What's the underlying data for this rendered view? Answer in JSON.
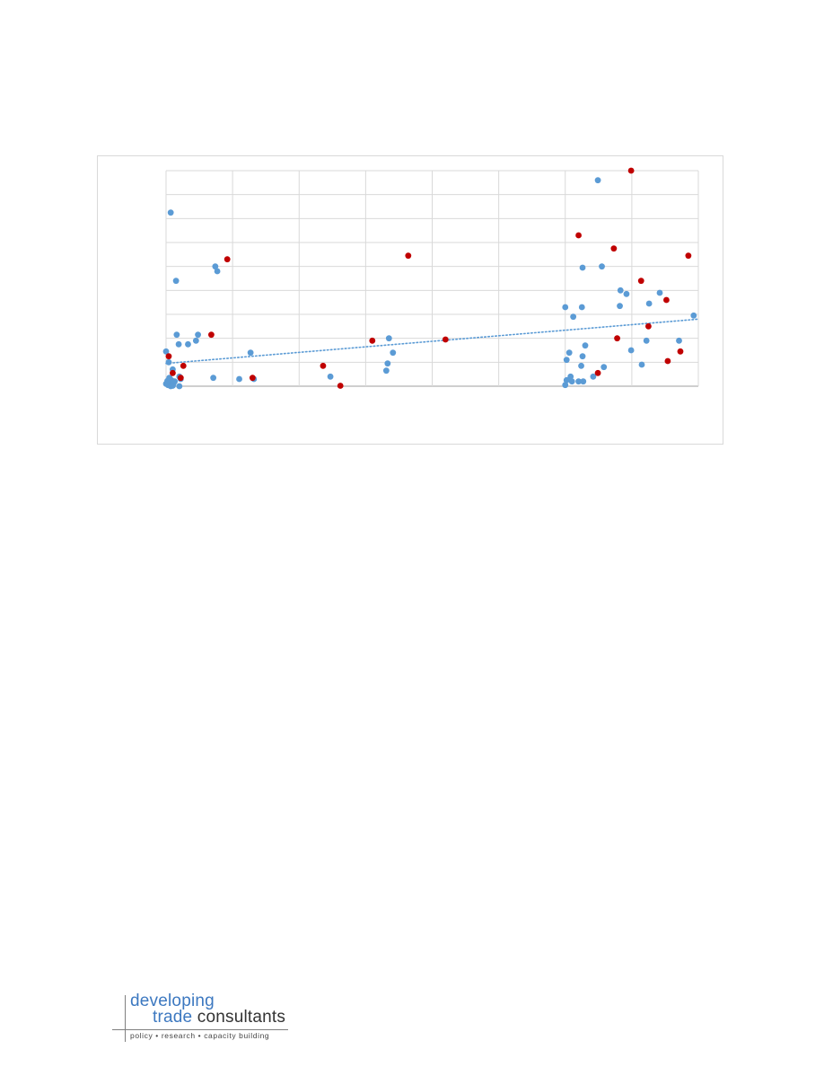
{
  "colors": {
    "series_a": "#5b9bd5",
    "series_b": "#c00000",
    "trendline": "#5b9bd5",
    "gridline": "#d9d9d9",
    "logo_blue": "#3c78c0",
    "logo_dark": "#333333"
  },
  "logo": {
    "line1": "developing",
    "line2_part1": "trade",
    "line2_part2": "consultants",
    "tagline": "policy  •  research  •  capacity building"
  },
  "chart_data": {
    "type": "scatter",
    "title": "",
    "xlabel": "",
    "ylabel": "",
    "grid": true,
    "legend": "none",
    "tick_labels_visible": false,
    "xlim": [
      0,
      8
    ],
    "ylim": [
      0,
      9
    ],
    "x_gridlines": [
      0,
      1,
      2,
      3,
      4,
      5,
      6,
      7,
      8
    ],
    "y_gridlines": [
      0,
      1,
      2,
      3,
      4,
      5,
      6,
      7,
      8,
      9
    ],
    "series": [
      {
        "color": "#5b9bd5",
        "points": [
          [
            0.07,
            7.25
          ],
          [
            0.15,
            4.4
          ],
          [
            0.74,
            5.0
          ],
          [
            0.77,
            4.8
          ],
          [
            0.16,
            2.15
          ],
          [
            0.19,
            1.75
          ],
          [
            0.33,
            1.75
          ],
          [
            0.45,
            1.9
          ],
          [
            0.48,
            2.15
          ],
          [
            0.0,
            1.45
          ],
          [
            0.04,
            1.0
          ],
          [
            0.1,
            0.7
          ],
          [
            0.2,
            0.4
          ],
          [
            0.22,
            0.3
          ],
          [
            0.05,
            0.35
          ],
          [
            0.0,
            0.1
          ],
          [
            0.03,
            0.05
          ],
          [
            0.06,
            0.15
          ],
          [
            0.08,
            0.25
          ],
          [
            0.11,
            0.1
          ],
          [
            0.13,
            0.2
          ],
          [
            0.07,
            0.0
          ],
          [
            0.02,
            0.22
          ],
          [
            0.1,
            0.02
          ],
          [
            0.2,
            0.0
          ],
          [
            0.71,
            0.35
          ],
          [
            1.1,
            0.3
          ],
          [
            1.27,
            1.4
          ],
          [
            1.32,
            0.3
          ],
          [
            2.47,
            0.4
          ],
          [
            3.35,
            2.0
          ],
          [
            3.33,
            0.95
          ],
          [
            3.31,
            0.65
          ],
          [
            3.41,
            1.4
          ],
          [
            6.49,
            8.6
          ],
          [
            6.55,
            5.0
          ],
          [
            6.0,
            3.3
          ],
          [
            6.02,
            1.1
          ],
          [
            6.06,
            1.4
          ],
          [
            6.08,
            0.4
          ],
          [
            6.02,
            0.25
          ],
          [
            6.0,
            0.05
          ],
          [
            6.1,
            0.2
          ],
          [
            6.2,
            0.2
          ],
          [
            6.27,
            0.2
          ],
          [
            6.12,
            2.9
          ],
          [
            6.25,
            3.3
          ],
          [
            6.26,
            4.95
          ],
          [
            6.26,
            1.25
          ],
          [
            6.3,
            1.7
          ],
          [
            6.24,
            0.85
          ],
          [
            6.42,
            0.4
          ],
          [
            6.58,
            0.8
          ],
          [
            6.83,
            4.0
          ],
          [
            6.92,
            3.85
          ],
          [
            6.82,
            3.35
          ],
          [
            6.99,
            1.5
          ],
          [
            7.15,
            0.9
          ],
          [
            7.22,
            1.9
          ],
          [
            7.26,
            3.45
          ],
          [
            7.42,
            3.9
          ],
          [
            7.71,
            1.9
          ],
          [
            7.93,
            2.95
          ]
        ]
      },
      {
        "color": "#c00000",
        "points": [
          [
            0.92,
            5.3
          ],
          [
            0.68,
            2.15
          ],
          [
            0.04,
            1.25
          ],
          [
            0.26,
            0.85
          ],
          [
            0.1,
            0.55
          ],
          [
            0.22,
            0.35
          ],
          [
            1.3,
            0.35
          ],
          [
            2.36,
            0.85
          ],
          [
            2.62,
            0.02
          ],
          [
            3.1,
            1.9
          ],
          [
            3.64,
            5.45
          ],
          [
            4.2,
            1.95
          ],
          [
            6.2,
            6.3
          ],
          [
            6.99,
            9.0
          ],
          [
            6.73,
            5.75
          ],
          [
            7.14,
            4.4
          ],
          [
            6.78,
            2.0
          ],
          [
            6.49,
            0.55
          ],
          [
            7.25,
            2.5
          ],
          [
            7.52,
            3.6
          ],
          [
            7.54,
            1.05
          ],
          [
            7.73,
            1.45
          ],
          [
            7.85,
            5.45
          ]
        ]
      }
    ],
    "trendline": {
      "type": "linear",
      "color": "#5b9bd5",
      "style": "dotted",
      "y_at_x0": 0.95,
      "y_at_x8": 2.8
    }
  }
}
